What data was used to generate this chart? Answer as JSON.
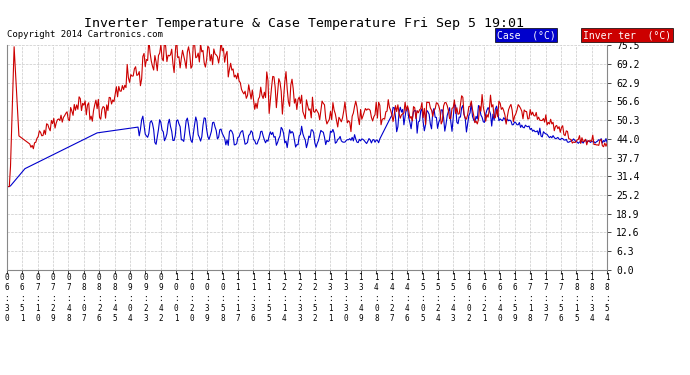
{
  "title": "Inverter Temperature & Case Temperature Fri Sep 5 19:01",
  "copyright": "Copyright 2014 Cartronics.com",
  "legend_case_label": "Case  (°C)",
  "legend_inverter_label": "Inver ter  (°C)",
  "case_color": "#0000cc",
  "inverter_color": "#cc0000",
  "legend_case_bg": "#0000cc",
  "legend_inverter_bg": "#cc0000",
  "yticks": [
    0.0,
    6.3,
    12.6,
    18.9,
    25.2,
    31.4,
    37.7,
    44.0,
    50.3,
    56.6,
    62.9,
    69.2,
    75.5
  ],
  "ylim": [
    0.0,
    75.5
  ],
  "background_color": "#ffffff",
  "plot_bg_color": "#ffffff",
  "grid_color": "#bbbbbb",
  "xtick_labels": [
    "06:30",
    "06:51",
    "07:10",
    "07:29",
    "07:48",
    "08:07",
    "08:26",
    "08:45",
    "09:04",
    "09:23",
    "09:42",
    "10:01",
    "10:20",
    "10:39",
    "10:58",
    "11:17",
    "11:36",
    "11:55",
    "12:14",
    "12:33",
    "12:52",
    "13:11",
    "13:30",
    "13:49",
    "14:08",
    "14:27",
    "14:46",
    "15:05",
    "15:24",
    "15:43",
    "16:02",
    "16:21",
    "16:40",
    "16:59",
    "17:18",
    "17:37",
    "17:56",
    "18:15",
    "18:34",
    "18:54"
  ],
  "num_points": 500
}
